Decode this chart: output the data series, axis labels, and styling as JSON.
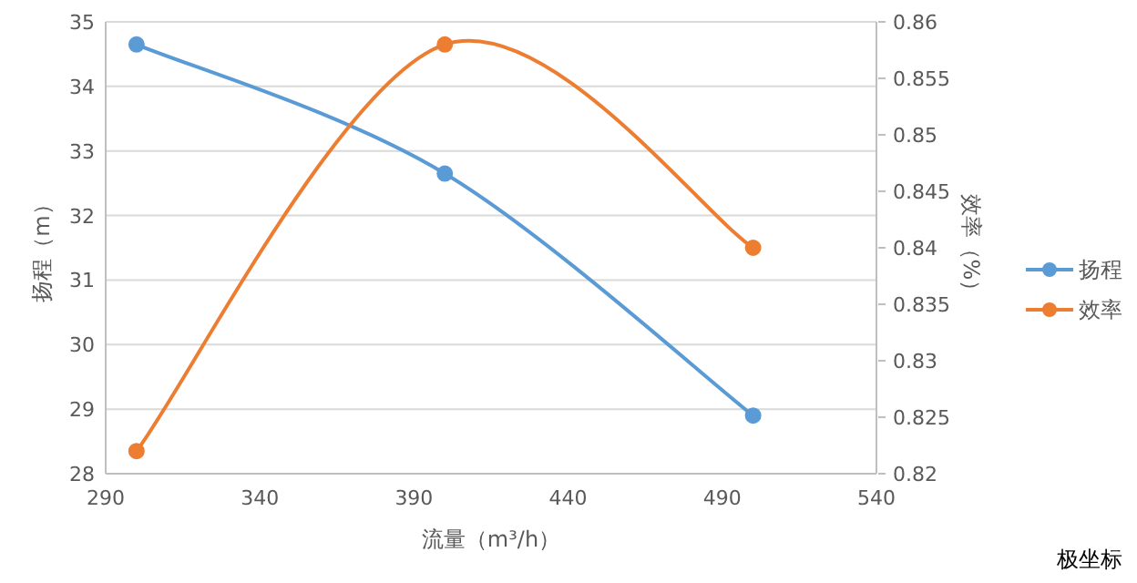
{
  "chart_data": {
    "type": "line",
    "xlabel": "流量（m³/h）",
    "ylabel": "扬程（m）",
    "y2label": "效率（%）",
    "x": [
      300,
      400,
      500
    ],
    "series": [
      {
        "name": "扬程",
        "color": "#5b9bd5",
        "values": [
          34.65,
          32.65,
          28.9
        ]
      },
      {
        "name": "效率",
        "color": "#ed7d31",
        "values": [
          0.822,
          0.858,
          0.84
        ],
        "axis": "y2"
      }
    ],
    "xlim": [
      290,
      540
    ],
    "xticks": [
      290,
      340,
      390,
      440,
      490,
      540
    ],
    "ylim": [
      28,
      35
    ],
    "yticks": [
      28,
      29,
      30,
      31,
      32,
      33,
      34,
      35
    ],
    "y2lim": [
      0.82,
      0.86
    ],
    "y2ticks": [
      0.82,
      0.825,
      0.83,
      0.835,
      0.84,
      0.845,
      0.85,
      0.855,
      0.86
    ],
    "grid": "y",
    "legend": "right",
    "marker": "circle",
    "line_style": "solid",
    "annotations": [
      "极坐标"
    ]
  }
}
